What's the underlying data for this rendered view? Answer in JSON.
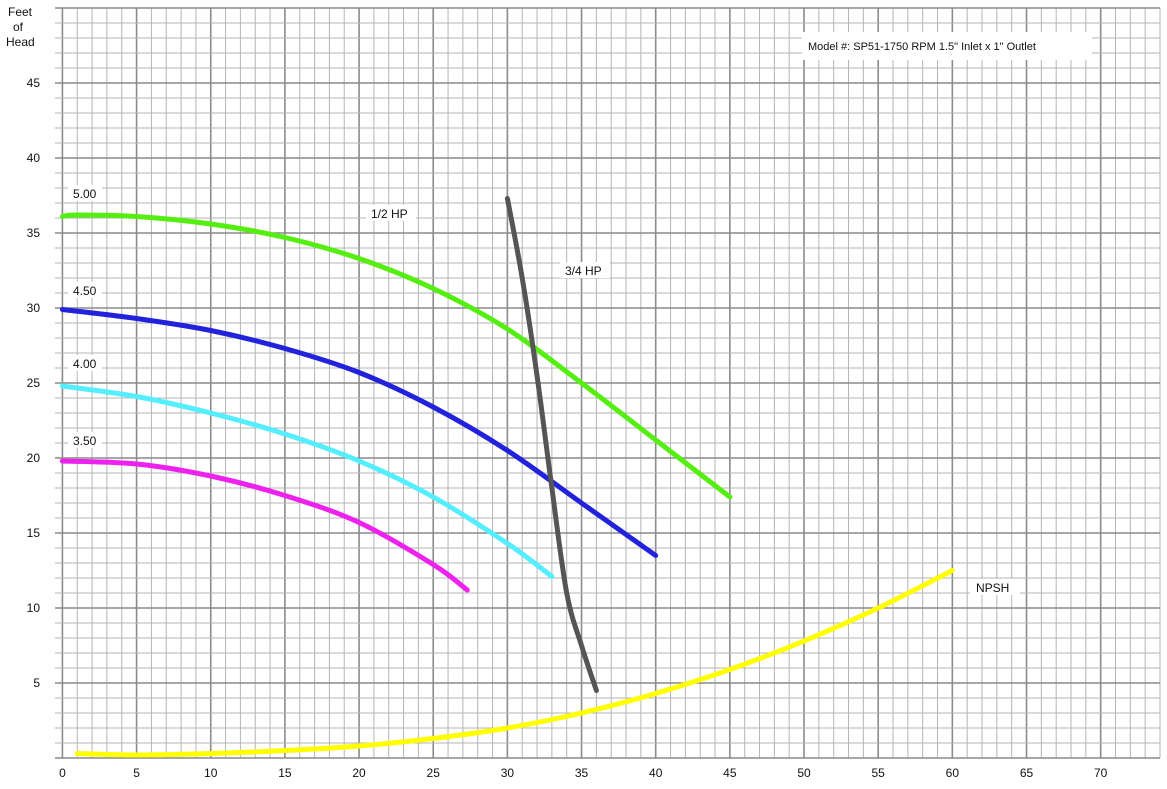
{
  "chart_data": {
    "type": "line",
    "title": "",
    "ylabel": "Feet\nof\nHead",
    "xlabel": "",
    "xlim": [
      -0.5,
      74
    ],
    "ylim": [
      0,
      50
    ],
    "x_ticks": [
      0,
      5,
      10,
      15,
      20,
      25,
      30,
      35,
      40,
      45,
      50,
      55,
      60,
      65,
      70
    ],
    "y_ticks": [
      5,
      10,
      15,
      20,
      25,
      30,
      35,
      40,
      45
    ],
    "grid": true,
    "model_text": "Model #: SP51-1750 RPM  1.5\" Inlet x 1\" Outlet",
    "series": [
      {
        "name": "5.00",
        "color": "#55ee11",
        "points": [
          [
            0,
            36.1
          ],
          [
            1,
            36.2
          ],
          [
            5,
            36.1
          ],
          [
            10,
            35.6
          ],
          [
            15,
            34.7
          ],
          [
            20,
            33.3
          ],
          [
            25,
            31.3
          ],
          [
            30,
            28.6
          ],
          [
            35,
            25.0
          ],
          [
            40,
            21.2
          ],
          [
            45,
            17.4
          ]
        ]
      },
      {
        "name": "4.50",
        "color": "#2222dd",
        "points": [
          [
            0,
            29.9
          ],
          [
            5,
            29.3
          ],
          [
            10,
            28.5
          ],
          [
            15,
            27.3
          ],
          [
            20,
            25.7
          ],
          [
            25,
            23.4
          ],
          [
            30,
            20.5
          ],
          [
            35,
            17.0
          ],
          [
            40,
            13.5
          ]
        ]
      },
      {
        "name": "4.00",
        "color": "#55eeff",
        "points": [
          [
            0,
            24.8
          ],
          [
            5,
            24.1
          ],
          [
            10,
            23.0
          ],
          [
            15,
            21.6
          ],
          [
            20,
            19.8
          ],
          [
            25,
            17.4
          ],
          [
            30,
            14.3
          ],
          [
            33,
            12.1
          ]
        ]
      },
      {
        "name": "3.50",
        "color": "#ee22ee",
        "points": [
          [
            0,
            19.8
          ],
          [
            5,
            19.6
          ],
          [
            10,
            18.8
          ],
          [
            15,
            17.5
          ],
          [
            20,
            15.7
          ],
          [
            25,
            12.9
          ],
          [
            27.3,
            11.2
          ]
        ]
      },
      {
        "name": "NPSH",
        "color": "#ffff00",
        "points": [
          [
            1,
            0.3
          ],
          [
            5,
            0.2
          ],
          [
            10,
            0.3
          ],
          [
            15,
            0.5
          ],
          [
            20,
            0.8
          ],
          [
            25,
            1.3
          ],
          [
            30,
            2.0
          ],
          [
            35,
            3.0
          ],
          [
            40,
            4.3
          ],
          [
            45,
            5.9
          ],
          [
            50,
            7.8
          ],
          [
            55,
            10.0
          ],
          [
            60,
            12.5
          ]
        ]
      },
      {
        "name": "",
        "color": "#555555",
        "points": [
          [
            30,
            37.3
          ],
          [
            31,
            32.0
          ],
          [
            32,
            25.5
          ],
          [
            33,
            18.0
          ],
          [
            34,
            11.0
          ],
          [
            35,
            7.5
          ],
          [
            36,
            4.5
          ]
        ]
      }
    ],
    "annotations": [
      "1/2 HP",
      "3/4 HP"
    ]
  }
}
